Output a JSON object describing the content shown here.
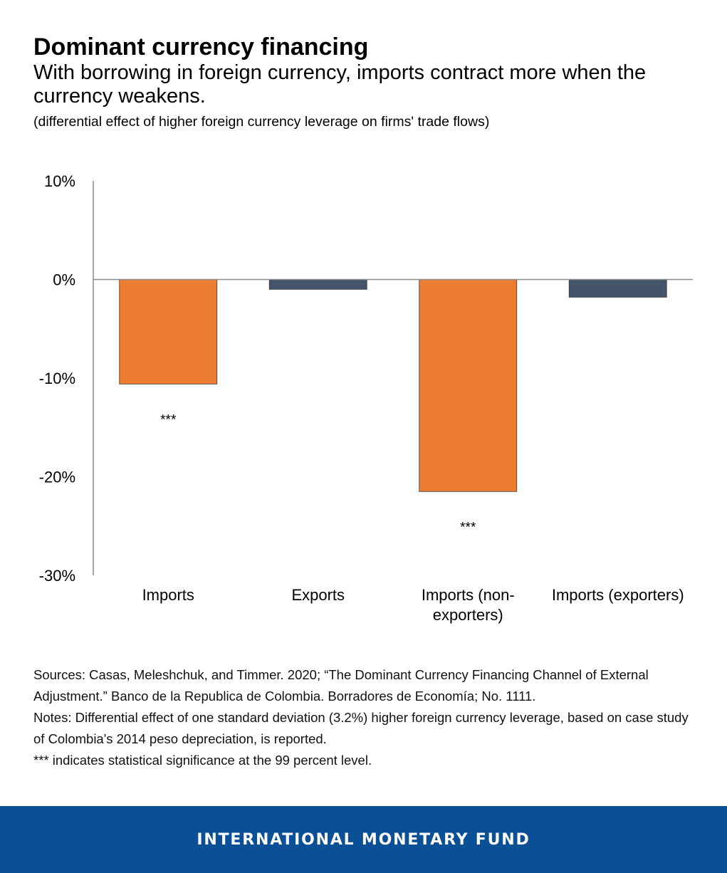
{
  "title": "Dominant currency financing",
  "subtitle": "With borrowing in foreign currency, imports contract more when the currency weakens.",
  "note": "(differential effect of higher foreign currency leverage on firms' trade flows)",
  "colors": {
    "imports": "#ed7d31",
    "exports": "#44546a",
    "axis": "#8c8c8c",
    "footer_bg": "#0b4f96"
  },
  "chart_data": {
    "type": "bar",
    "categories": [
      "Imports",
      "Exports",
      "Imports (non-exporters)",
      "Imports (exporters)"
    ],
    "category_lines": [
      [
        "Imports"
      ],
      [
        "Exports"
      ],
      [
        "Imports (non-",
        "exporters)"
      ],
      [
        "Imports (exporters)"
      ]
    ],
    "values": [
      -10.6,
      -1.0,
      -21.5,
      -1.8
    ],
    "bar_colors": [
      "#ed7d31",
      "#44546a",
      "#ed7d31",
      "#44546a"
    ],
    "significance": [
      "***",
      "",
      "***",
      ""
    ],
    "yticks": [
      10,
      0,
      -10,
      -20,
      -30
    ],
    "ytick_labels": [
      "10%",
      "0%",
      "-10%",
      "-20%",
      "-30%"
    ],
    "ylim": [
      -30,
      10
    ],
    "xlabel": "",
    "ylabel": "",
    "grid": false
  },
  "sources": "Sources: Casas, Meleshchuk, and Timmer. 2020; “The Dominant Currency Financing Channel of External Adjustment.” Banco de la Republica de Colombia. Borradores de Economía; No. 1111.",
  "notes": "Notes: Differential effect of one standard deviation (3.2%) higher foreign currency leverage, based on case study of Colombia's 2014 peso depreciation, is reported.",
  "significance_note": "*** indicates statistical significance at the 99 percent level.",
  "footer": "INTERNATIONAL MONETARY FUND"
}
